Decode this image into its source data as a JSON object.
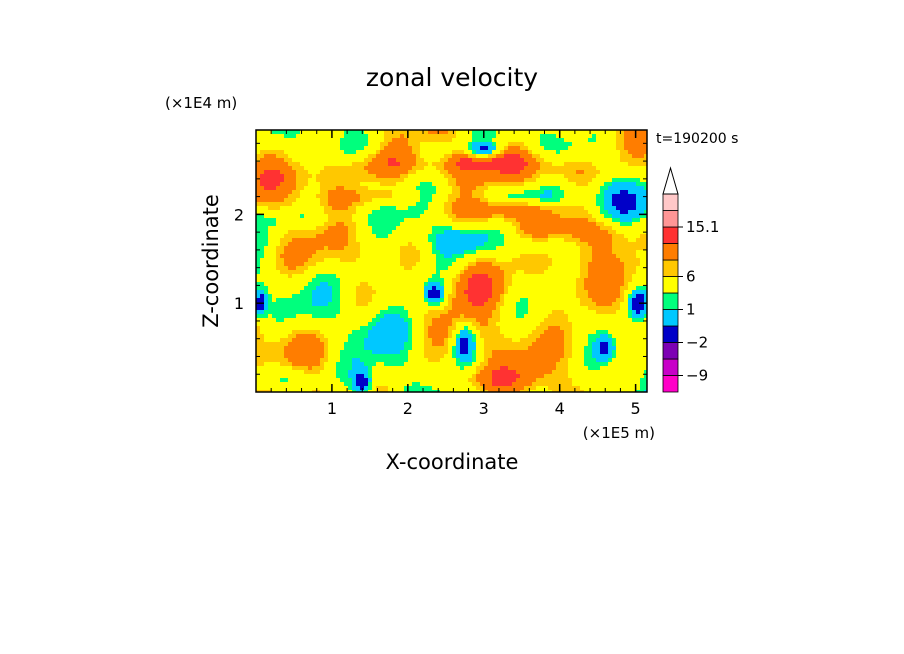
{
  "chart_data": {
    "type": "heatmap",
    "title": "zonal velocity",
    "xlabel": "X-coordinate",
    "ylabel": "Z-coordinate",
    "x_scale_label": "(×1E5 m)",
    "y_scale_label": "(×1E4 m)",
    "time_label": "t=190200 s",
    "xlim": [
      0,
      5.15
    ],
    "ylim": [
      0,
      2.95
    ],
    "x_ticks": [
      "1",
      "2",
      "3",
      "4",
      "5"
    ],
    "x_tick_values": [
      1,
      2,
      3,
      4,
      5
    ],
    "y_ticks": [
      "1",
      "2"
    ],
    "y_tick_values": [
      1,
      2
    ],
    "colorbar": {
      "tick_labels": [
        "15.1",
        "6",
        "1",
        "−2",
        "−9"
      ],
      "tick_level_index": [
        10,
        7,
        5,
        3,
        1
      ],
      "levels": [
        {
          "color": "#ff00c8"
        },
        {
          "color": "#c800c8"
        },
        {
          "color": "#7d00b4"
        },
        {
          "color": "#0000c8"
        },
        {
          "color": "#00c8ff"
        },
        {
          "color": "#00ff7d"
        },
        {
          "color": "#ffff00"
        },
        {
          "color": "#ffc800"
        },
        {
          "color": "#ff7d00"
        },
        {
          "color": "#ff3232"
        },
        {
          "color": "#ff9696"
        },
        {
          "color": "#ffc8c8"
        }
      ],
      "extend": "max"
    },
    "features": [
      {
        "x": 3.0,
        "z": 2.6,
        "value": 4,
        "sx": 0.55,
        "sz": 0.1
      },
      {
        "x": 3.0,
        "z": 2.72,
        "value": -6,
        "sx": 0.15,
        "sz": 0.06
      },
      {
        "x": 4.0,
        "z": 2.5,
        "value": 3,
        "sx": 0.4,
        "sz": 0.12
      },
      {
        "x": 1.5,
        "z": 2.55,
        "value": 3,
        "sx": 0.4,
        "sz": 0.12
      },
      {
        "x": 0.6,
        "z": 2.4,
        "value": 2,
        "sx": 0.6,
        "sz": 0.15
      },
      {
        "x": 2.4,
        "z": 2.7,
        "value": -3,
        "sx": 0.2,
        "sz": 0.1
      },
      {
        "x": 3.5,
        "z": 2.2,
        "value": -3,
        "sx": 0.5,
        "sz": 0.08
      },
      {
        "x": 3.1,
        "z": 2.05,
        "value": 3,
        "sx": 0.45,
        "sz": 0.1
      },
      {
        "x": 1.6,
        "z": 2.2,
        "value": 2,
        "sx": 0.45,
        "sz": 0.08
      },
      {
        "x": 0.5,
        "z": 1.95,
        "value": -2,
        "sx": 0.5,
        "sz": 0.08
      },
      {
        "x": 4.9,
        "z": 2.15,
        "value": -2.5,
        "sx": 0.25,
        "sz": 0.15
      },
      {
        "x": 2.7,
        "z": 1.7,
        "value": -3,
        "sx": 0.25,
        "sz": 0.1
      },
      {
        "x": 3.7,
        "z": 1.65,
        "value": -3,
        "sx": 0.25,
        "sz": 0.08
      },
      {
        "x": 0.5,
        "z": 1.5,
        "value": 1.5,
        "sx": 0.5,
        "sz": 0.15
      },
      {
        "x": 3.6,
        "z": 1.1,
        "value": 1.2,
        "sx": 0.8,
        "sz": 0.4
      },
      {
        "x": 2.9,
        "z": 1.25,
        "value": 4,
        "sx": 0.3,
        "sz": 0.2
      },
      {
        "x": 2.35,
        "z": 1.1,
        "value": -6,
        "sx": 0.1,
        "sz": 0.1
      },
      {
        "x": 2.75,
        "z": 0.55,
        "value": -6,
        "sx": 0.1,
        "sz": 0.15
      },
      {
        "x": 1.8,
        "z": 0.7,
        "value": -2,
        "sx": 0.35,
        "sz": 0.2
      },
      {
        "x": 4.1,
        "z": 0.5,
        "value": 2,
        "sx": 0.4,
        "sz": 0.2
      },
      {
        "x": 0.6,
        "z": 0.55,
        "value": 2,
        "sx": 0.4,
        "sz": 0.15
      },
      {
        "x": 0.4,
        "z": 0.15,
        "value": -3,
        "sx": 0.3,
        "sz": 0.1
      },
      {
        "x": 1.4,
        "z": 0.1,
        "value": -6,
        "sx": 0.08,
        "sz": 0.1
      },
      {
        "x": 3.0,
        "z": 0.15,
        "value": 2,
        "sx": 0.6,
        "sz": 0.1
      },
      {
        "x": 5.05,
        "z": 1.0,
        "value": -6,
        "sx": 0.1,
        "sz": 0.12
      },
      {
        "x": 0.05,
        "z": 1.0,
        "value": -6,
        "sx": 0.06,
        "sz": 0.1
      },
      {
        "x": 4.6,
        "z": 0.5,
        "value": -4,
        "sx": 0.1,
        "sz": 0.1
      },
      {
        "x": 1.8,
        "z": 1.3,
        "value": -1.8,
        "sx": 0.5,
        "sz": 0.18
      },
      {
        "x": 4.6,
        "z": 1.8,
        "value": 2.5,
        "sx": 0.35,
        "sz": 0.12
      }
    ]
  }
}
